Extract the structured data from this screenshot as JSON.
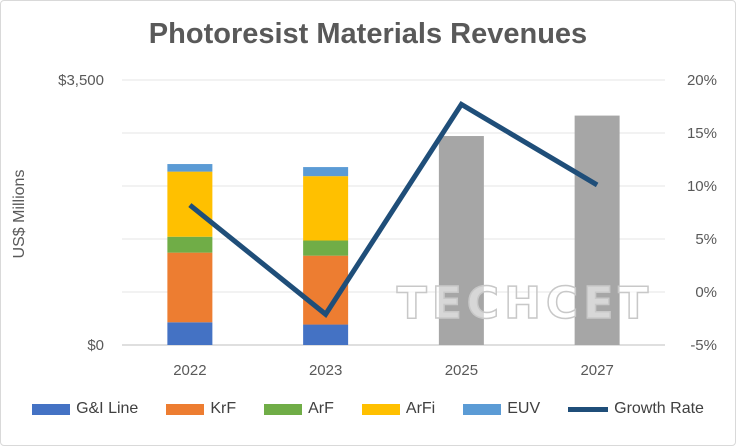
{
  "chart_data": {
    "type": "bar",
    "title": "Photoresist Materials Revenues",
    "ylabel": "US$ Millions",
    "xlabel": "",
    "categories": [
      "2022",
      "2023",
      "2025",
      "2027"
    ],
    "ylim": [
      0,
      3500
    ],
    "y_tick_labels": [
      "$0",
      "$3,500"
    ],
    "y2lim": [
      -5,
      20
    ],
    "y2_tick_labels": [
      "-5%",
      "0%",
      "5%",
      "10%",
      "15%",
      "20%"
    ],
    "series": [
      {
        "name": "G&I Line",
        "color": "#4472c4",
        "values": [
          300,
          270,
          null,
          null
        ]
      },
      {
        "name": "KrF",
        "color": "#ed7d31",
        "values": [
          920,
          910,
          null,
          null
        ]
      },
      {
        "name": "ArF",
        "color": "#70ad47",
        "values": [
          210,
          200,
          null,
          null
        ]
      },
      {
        "name": "ArFi",
        "color": "#ffc000",
        "values": [
          860,
          850,
          null,
          null
        ]
      },
      {
        "name": "EUV",
        "color": "#5b9bd5",
        "values": [
          100,
          120,
          null,
          null
        ]
      },
      {
        "name": "",
        "color": "#a6a6a6",
        "values": [
          null,
          null,
          2760,
          3030
        ]
      }
    ],
    "line_series": {
      "name": "Growth Rate",
      "axis": "secondary",
      "color": "#1f4e79",
      "values": [
        8.2,
        -2.1,
        17.7,
        10.1
      ]
    },
    "watermark": "TECHCET",
    "legend_position": "bottom",
    "grid": true
  }
}
